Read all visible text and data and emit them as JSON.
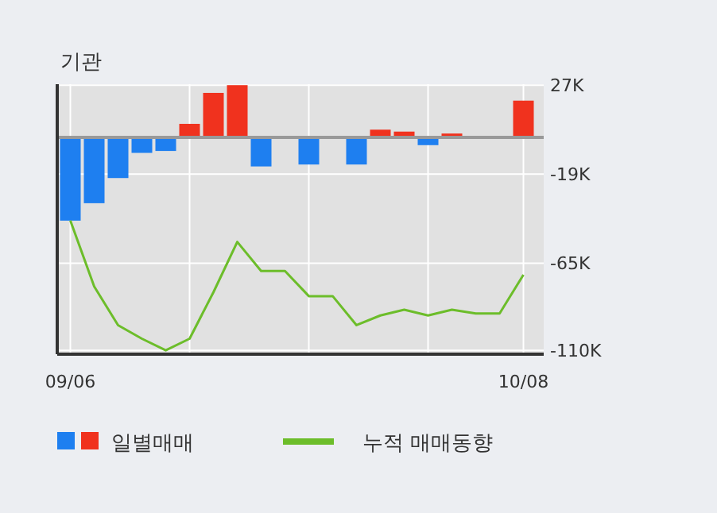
{
  "chart_data": {
    "type": "bar",
    "title": "기관",
    "categories": [
      "09/06",
      null,
      null,
      null,
      null,
      null,
      null,
      null,
      null,
      null,
      null,
      null,
      null,
      null,
      null,
      null,
      null,
      null,
      null,
      "10/08"
    ],
    "series": [
      {
        "name": "일별매매",
        "colors": [
          "#1e7ff0",
          "#1e7ff0",
          "#1e7ff0",
          "#1e7ff0",
          "#1e7ff0",
          "#f0321e",
          "#f0321e",
          "#f0321e",
          "#1e7ff0",
          "#1e7ff0",
          "#1e7ff0",
          "#1e7ff0",
          "#1e7ff0",
          "#f0321e",
          "#f0321e",
          "#1e7ff0",
          "#f0321e",
          "#f0321e",
          "#f0321e",
          "#f0321e"
        ],
        "values": [
          -43000,
          -34000,
          -21000,
          -8000,
          -7000,
          7000,
          23000,
          27000,
          -15000,
          0,
          -14000,
          0,
          -14000,
          4000,
          3000,
          -4000,
          2000,
          0,
          0,
          19000
        ]
      },
      {
        "name": "누적 매매동향",
        "type": "line",
        "color": "#6cbd2a",
        "values": [
          -43000,
          -77000,
          -97000,
          -104000,
          -110000,
          -104000,
          -80000,
          -54000,
          -69000,
          -69000,
          -82000,
          -82000,
          -97000,
          -92000,
          -89000,
          -92000,
          -89000,
          -91000,
          -91000,
          -71000
        ]
      }
    ],
    "ylim": [
      -112000,
      27500
    ],
    "yticks": [
      {
        "value": 27000,
        "label": "27K"
      },
      {
        "value": -19000,
        "label": "-19K"
      },
      {
        "value": -65000,
        "label": "-65K"
      },
      {
        "value": -110000,
        "label": "-110K"
      }
    ],
    "ref_lines": [
      {
        "axis": "y",
        "value": 0,
        "label": null,
        "color": "#999999"
      }
    ],
    "grid": true,
    "legend": "bottom"
  }
}
